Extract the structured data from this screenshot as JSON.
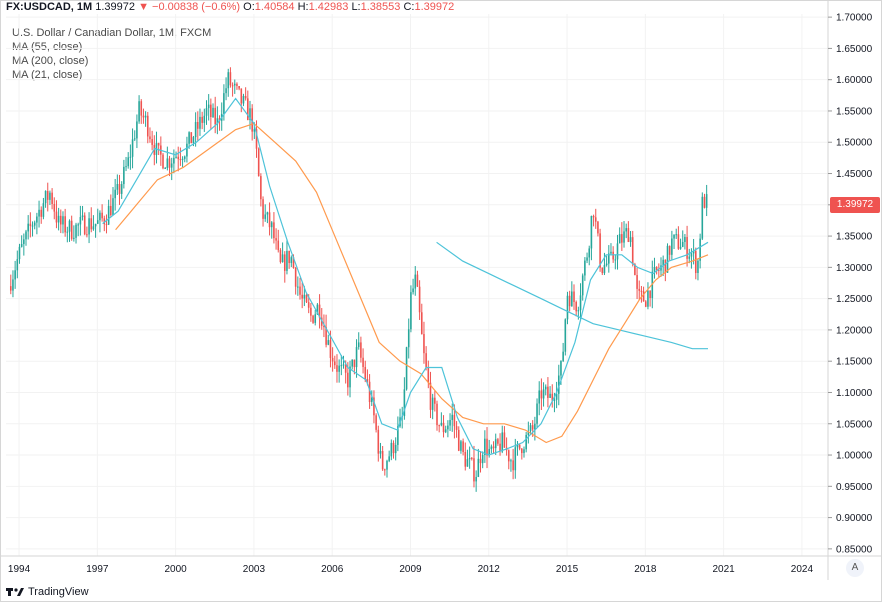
{
  "header": {
    "symbol": "FX:USDCAD, 1M",
    "last": "1.39972",
    "arrow": "▼",
    "change": "−0.00838 (−0.6%)",
    "o_label": "O:",
    "o_value": "1.40584",
    "h_label": "H:",
    "h_value": "1.42983",
    "l_label": "L:",
    "l_value": "1.38553",
    "c_label": "C:",
    "c_value": "1.39972"
  },
  "legend": {
    "title": "U.S. Dollar / Canadian Dollar, 1M, FXCM",
    "ma1": "MA (55, close)",
    "ma2": "MA (200, close)",
    "ma3": "MA (21, close)"
  },
  "price_tag": "1.39972",
  "footer": {
    "brand": "TradingView"
  },
  "axis_button": "A",
  "colors": {
    "up": "#26a69a",
    "down": "#ef5350",
    "ma55": "#ff9a4d",
    "ma200": "#4dc3d9",
    "ma21": "#4dc3d9"
  },
  "chart_data": {
    "type": "candlestick",
    "x_ticks": [
      "1994",
      "1997",
      "2000",
      "2003",
      "2006",
      "2009",
      "2012",
      "2015",
      "2018",
      "2021",
      "2024"
    ],
    "x_range": [
      1993.5,
      2025.0
    ],
    "y_ticks": [
      "0.85000",
      "0.90000",
      "0.95000",
      "1.00000",
      "1.05000",
      "1.10000",
      "1.15000",
      "1.20000",
      "1.25000",
      "1.30000",
      "1.35000",
      "1.40000",
      "1.45000",
      "1.50000",
      "1.55000",
      "1.60000",
      "1.65000",
      "1.70000"
    ],
    "ylim": [
      0.845,
      1.705
    ],
    "last_price": 1.39972,
    "close_path": [
      [
        1993.6,
        1.27
      ],
      [
        1994.0,
        1.32
      ],
      [
        1994.5,
        1.37
      ],
      [
        1994.9,
        1.4
      ],
      [
        1995.2,
        1.42
      ],
      [
        1995.5,
        1.37
      ],
      [
        1996.0,
        1.36
      ],
      [
        1996.5,
        1.37
      ],
      [
        1997.0,
        1.37
      ],
      [
        1997.3,
        1.38
      ],
      [
        1997.8,
        1.42
      ],
      [
        1998.2,
        1.47
      ],
      [
        1998.6,
        1.55
      ],
      [
        1998.9,
        1.53
      ],
      [
        1999.3,
        1.48
      ],
      [
        1999.7,
        1.47
      ],
      [
        2000.0,
        1.48
      ],
      [
        2000.4,
        1.49
      ],
      [
        2000.8,
        1.52
      ],
      [
        2001.2,
        1.55
      ],
      [
        2001.6,
        1.53
      ],
      [
        2002.0,
        1.6
      ],
      [
        2002.3,
        1.58
      ],
      [
        2002.6,
        1.56
      ],
      [
        2002.9,
        1.54
      ],
      [
        2003.1,
        1.48
      ],
      [
        2003.3,
        1.39
      ],
      [
        2003.7,
        1.36
      ],
      [
        2004.0,
        1.3
      ],
      [
        2004.4,
        1.32
      ],
      [
        2004.8,
        1.25
      ],
      [
        2005.2,
        1.22
      ],
      [
        2005.5,
        1.24
      ],
      [
        2005.9,
        1.17
      ],
      [
        2006.2,
        1.14
      ],
      [
        2006.6,
        1.12
      ],
      [
        2007.0,
        1.17
      ],
      [
        2007.3,
        1.12
      ],
      [
        2007.6,
        1.06
      ],
      [
        2007.9,
        0.98
      ],
      [
        2008.3,
        1.01
      ],
      [
        2008.7,
        1.06
      ],
      [
        2009.0,
        1.25
      ],
      [
        2009.2,
        1.28
      ],
      [
        2009.5,
        1.16
      ],
      [
        2009.8,
        1.08
      ],
      [
        2010.2,
        1.04
      ],
      [
        2010.6,
        1.06
      ],
      [
        2011.0,
        1.0
      ],
      [
        2011.5,
        0.97
      ],
      [
        2011.8,
        1.02
      ],
      [
        2012.1,
        1.0
      ],
      [
        2012.5,
        1.02
      ],
      [
        2012.9,
        0.99
      ],
      [
        2013.3,
        1.02
      ],
      [
        2013.7,
        1.04
      ],
      [
        2014.0,
        1.1
      ],
      [
        2014.4,
        1.09
      ],
      [
        2014.8,
        1.14
      ],
      [
        2015.0,
        1.26
      ],
      [
        2015.4,
        1.24
      ],
      [
        2015.8,
        1.33
      ],
      [
        2016.0,
        1.4
      ],
      [
        2016.3,
        1.3
      ],
      [
        2016.7,
        1.31
      ],
      [
        2017.0,
        1.34
      ],
      [
        2017.4,
        1.36
      ],
      [
        2017.7,
        1.25
      ],
      [
        2018.0,
        1.25
      ],
      [
        2018.4,
        1.29
      ],
      [
        2018.8,
        1.31
      ],
      [
        2019.0,
        1.34
      ],
      [
        2019.4,
        1.34
      ],
      [
        2019.8,
        1.32
      ],
      [
        2020.0,
        1.3
      ],
      [
        2020.2,
        1.41
      ],
      [
        2020.4,
        1.4
      ]
    ],
    "ma21": [
      [
        1997.2,
        1.37
      ],
      [
        1997.8,
        1.39
      ],
      [
        1998.5,
        1.44
      ],
      [
        1999.2,
        1.49
      ],
      [
        2000.0,
        1.48
      ],
      [
        2000.8,
        1.5
      ],
      [
        2001.6,
        1.53
      ],
      [
        2002.3,
        1.57
      ],
      [
        2003.0,
        1.53
      ],
      [
        2003.6,
        1.43
      ],
      [
        2004.3,
        1.34
      ],
      [
        2005.0,
        1.26
      ],
      [
        2005.8,
        1.2
      ],
      [
        2006.6,
        1.14
      ],
      [
        2007.3,
        1.12
      ],
      [
        2007.9,
        1.05
      ],
      [
        2008.5,
        1.04
      ],
      [
        2009.0,
        1.1
      ],
      [
        2009.6,
        1.14
      ],
      [
        2010.2,
        1.14
      ],
      [
        2010.8,
        1.06
      ],
      [
        2011.4,
        1.01
      ],
      [
        2012.0,
        1.0
      ],
      [
        2012.7,
        1.01
      ],
      [
        2013.3,
        1.02
      ],
      [
        2014.0,
        1.05
      ],
      [
        2014.6,
        1.1
      ],
      [
        2015.3,
        1.18
      ],
      [
        2015.9,
        1.28
      ],
      [
        2016.5,
        1.32
      ],
      [
        2017.1,
        1.32
      ],
      [
        2017.7,
        1.3
      ],
      [
        2018.3,
        1.29
      ],
      [
        2018.9,
        1.31
      ],
      [
        2019.6,
        1.32
      ],
      [
        2020.4,
        1.34
      ]
    ],
    "ma55": [
      [
        1997.7,
        1.36
      ],
      [
        1998.5,
        1.4
      ],
      [
        1999.3,
        1.44
      ],
      [
        2000.3,
        1.46
      ],
      [
        2001.3,
        1.49
      ],
      [
        2002.3,
        1.52
      ],
      [
        2003.0,
        1.53
      ],
      [
        2003.8,
        1.5
      ],
      [
        2004.6,
        1.47
      ],
      [
        2005.4,
        1.42
      ],
      [
        2006.2,
        1.34
      ],
      [
        2007.0,
        1.26
      ],
      [
        2007.8,
        1.18
      ],
      [
        2008.6,
        1.15
      ],
      [
        2009.4,
        1.13
      ],
      [
        2010.2,
        1.09
      ],
      [
        2011.0,
        1.06
      ],
      [
        2011.8,
        1.05
      ],
      [
        2012.6,
        1.05
      ],
      [
        2013.4,
        1.04
      ],
      [
        2014.2,
        1.02
      ],
      [
        2014.8,
        1.03
      ],
      [
        2015.4,
        1.07
      ],
      [
        2016.0,
        1.12
      ],
      [
        2016.6,
        1.17
      ],
      [
        2017.2,
        1.21
      ],
      [
        2017.8,
        1.25
      ],
      [
        2018.4,
        1.28
      ],
      [
        2019.0,
        1.3
      ],
      [
        2019.8,
        1.31
      ],
      [
        2020.4,
        1.32
      ]
    ],
    "ma200": [
      [
        2010.0,
        1.34
      ],
      [
        2011.0,
        1.31
      ],
      [
        2012.0,
        1.29
      ],
      [
        2013.0,
        1.27
      ],
      [
        2014.0,
        1.25
      ],
      [
        2015.0,
        1.23
      ],
      [
        2016.0,
        1.21
      ],
      [
        2017.0,
        1.2
      ],
      [
        2018.0,
        1.19
      ],
      [
        2019.0,
        1.18
      ],
      [
        2019.8,
        1.17
      ],
      [
        2020.4,
        1.17
      ]
    ]
  }
}
